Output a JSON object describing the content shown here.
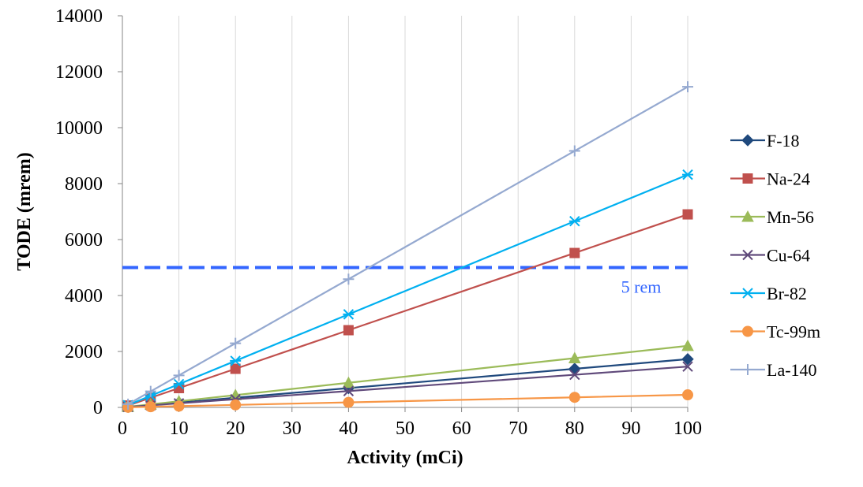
{
  "chart_data": {
    "type": "line",
    "title": "",
    "xlabel": "Activity (mCi)",
    "ylabel": "TODE (mrem)",
    "xlim": [
      0,
      100
    ],
    "ylim": [
      0,
      14000
    ],
    "x_ticks": [
      0,
      10,
      20,
      30,
      40,
      50,
      60,
      70,
      80,
      90,
      100
    ],
    "y_ticks": [
      0,
      2000,
      4000,
      6000,
      8000,
      10000,
      12000,
      14000
    ],
    "grid": "vertical gridlines",
    "legend_position": "right",
    "x": [
      1,
      5,
      10,
      20,
      40,
      80,
      100
    ],
    "series": [
      {
        "name": "F-18",
        "color": "#1f497d",
        "marker": "diamond",
        "values": [
          17,
          86,
          172,
          345,
          690,
          1380,
          1725
        ]
      },
      {
        "name": "Na-24",
        "color": "#c0504d",
        "marker": "square",
        "values": [
          69,
          345,
          690,
          1380,
          2760,
          5520,
          6900
        ]
      },
      {
        "name": "Mn-56",
        "color": "#9bbb59",
        "marker": "triangle",
        "values": [
          22,
          110,
          220,
          440,
          880,
          1760,
          2200
        ]
      },
      {
        "name": "Cu-64",
        "color": "#604a7b",
        "marker": "x",
        "values": [
          15,
          73,
          146,
          292,
          584,
          1168,
          1460
        ]
      },
      {
        "name": "Br-82",
        "color": "#00b0f0",
        "marker": "asterisk",
        "values": [
          83,
          416,
          832,
          1664,
          3328,
          6656,
          8320
        ]
      },
      {
        "name": "Tc-99m",
        "color": "#f79646",
        "marker": "circle",
        "values": [
          4.5,
          23,
          45,
          90,
          180,
          360,
          450
        ]
      },
      {
        "name": "La-140",
        "color": "#95a9d0",
        "marker": "plus",
        "values": [
          115,
          573,
          1146,
          2292,
          4584,
          9168,
          11460
        ]
      }
    ],
    "reference_line": {
      "value": 5000,
      "label": "5 rem",
      "color": "#3366ff",
      "style": "dashed"
    }
  }
}
